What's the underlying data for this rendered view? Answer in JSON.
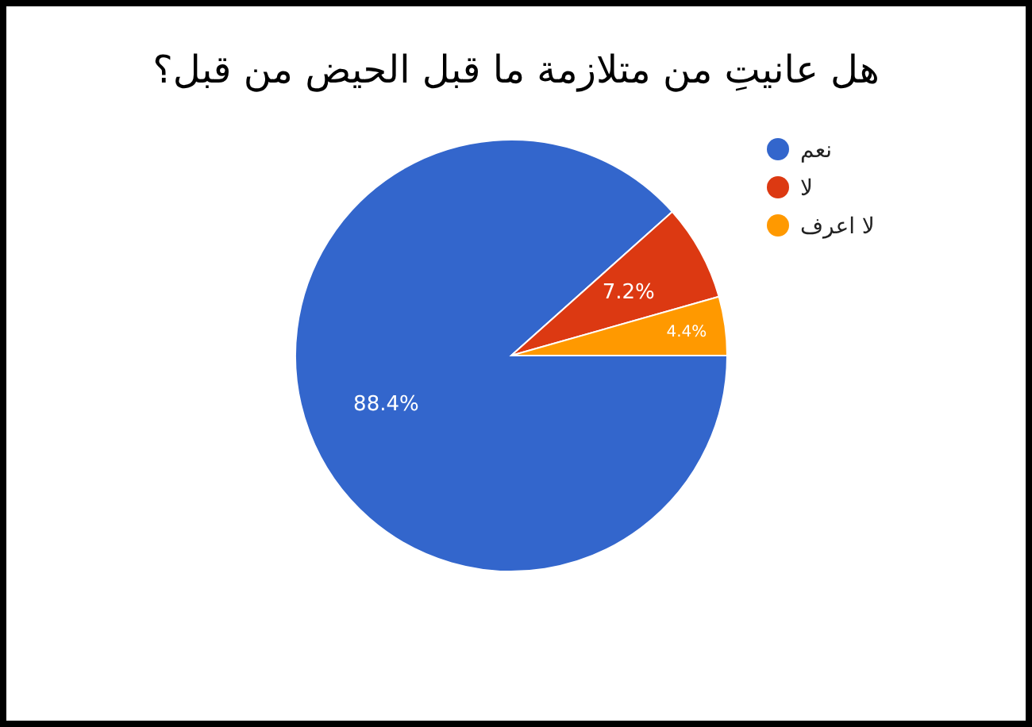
{
  "chart_data": {
    "type": "pie",
    "title": "هل عانيتِ من متلازمة ما قبل الحيض من قبل؟",
    "categories": [
      "نعم",
      "لا",
      "لا اعرف"
    ],
    "values": [
      88.4,
      7.2,
      4.4
    ],
    "colors": [
      "#3366cc",
      "#dc3912",
      "#ff9900"
    ],
    "value_labels": [
      "88.4%",
      "7.2%",
      "4.4%"
    ],
    "legend": "top right"
  }
}
